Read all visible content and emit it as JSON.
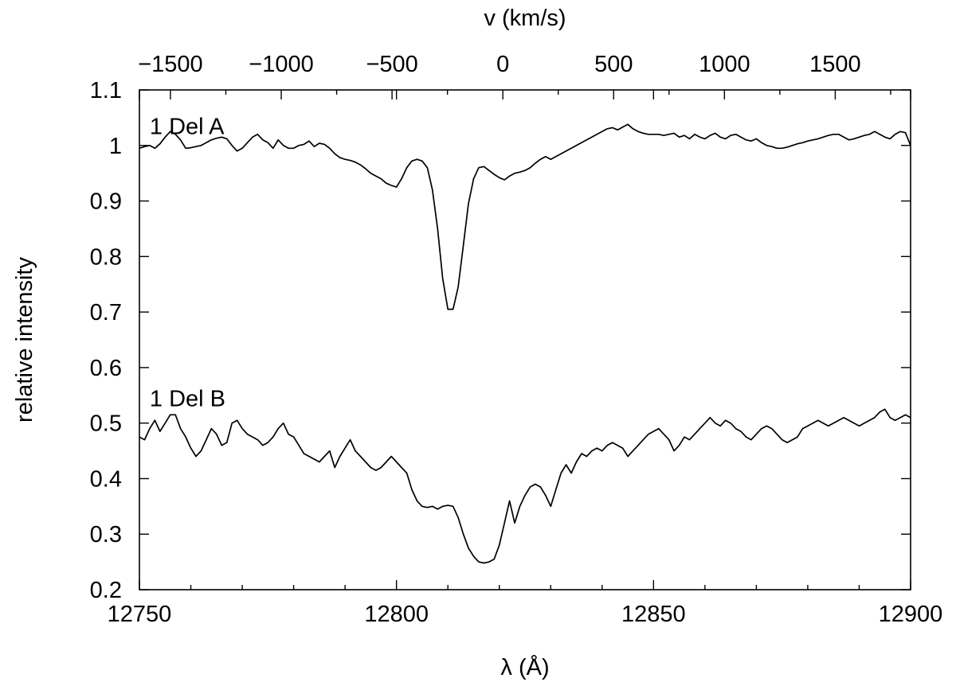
{
  "chart_data": {
    "type": "line",
    "xlabel": "λ (Å)",
    "ylabel": "relative intensity",
    "x2label": "v (km/s)",
    "xlim": [
      12750,
      12900
    ],
    "ylim": [
      0.2,
      1.1
    ],
    "x2lim": [
      -1640,
      1840
    ],
    "x_ticks": [
      12750,
      12800,
      12850,
      12900
    ],
    "x_ticklabels": [
      "12750",
      "12800",
      "12850",
      "12900"
    ],
    "x_minor_ticks": [
      12760,
      12770,
      12780,
      12790,
      12810,
      12820,
      12830,
      12840,
      12860,
      12870,
      12880,
      12890
    ],
    "y_ticks": [
      0.2,
      0.3,
      0.4,
      0.5,
      0.6,
      0.7,
      0.8,
      0.9,
      1.0,
      1.1
    ],
    "y_ticklabels": [
      "0.2",
      "0.3",
      "0.4",
      "0.5",
      "0.6",
      "0.7",
      "0.8",
      "0.9",
      "1",
      "1.1"
    ],
    "x2_ticks": [
      -1500,
      -1000,
      -500,
      0,
      500,
      1000,
      1500
    ],
    "x2_ticklabels": [
      "−1500",
      "−1000",
      "−500",
      "0",
      "500",
      "1000",
      "1500"
    ],
    "x2_minor_ticks": [
      -1250,
      -750,
      -250,
      250,
      750,
      1250,
      1750
    ],
    "grid": false,
    "legend": "none",
    "series": [
      {
        "name": "1 Del A",
        "label": "1 Del A",
        "x": [
          12750,
          12751,
          12752,
          12753,
          12754,
          12755,
          12756,
          12757,
          12758,
          12759,
          12760,
          12761,
          12762,
          12763,
          12764,
          12765,
          12766,
          12767,
          12768,
          12769,
          12770,
          12771,
          12772,
          12773,
          12774,
          12775,
          12776,
          12777,
          12778,
          12779,
          12780,
          12781,
          12782,
          12783,
          12784,
          12785,
          12786,
          12787,
          12788,
          12789,
          12790,
          12791,
          12792,
          12793,
          12794,
          12795,
          12796,
          12797,
          12798,
          12799,
          12800,
          12801,
          12802,
          12803,
          12804,
          12805,
          12806,
          12807,
          12808,
          12809,
          12810,
          12811,
          12812,
          12813,
          12814,
          12815,
          12816,
          12817,
          12818,
          12819,
          12820,
          12821,
          12822,
          12823,
          12824,
          12825,
          12826,
          12827,
          12828,
          12829,
          12830,
          12831,
          12832,
          12833,
          12834,
          12835,
          12836,
          12837,
          12838,
          12839,
          12840,
          12841,
          12842,
          12843,
          12844,
          12845,
          12846,
          12847,
          12848,
          12849,
          12850,
          12851,
          12852,
          12853,
          12854,
          12855,
          12856,
          12857,
          12858,
          12859,
          12860,
          12861,
          12862,
          12863,
          12864,
          12865,
          12866,
          12867,
          12868,
          12869,
          12870,
          12871,
          12872,
          12873,
          12874,
          12875,
          12876,
          12877,
          12878,
          12879,
          12880,
          12881,
          12882,
          12883,
          12884,
          12885,
          12886,
          12887,
          12888,
          12889,
          12890,
          12891,
          12892,
          12893,
          12894,
          12895,
          12896,
          12897,
          12898,
          12899,
          12900
        ],
        "y": [
          0.995,
          0.998,
          1.0,
          0.995,
          1.003,
          1.015,
          1.025,
          1.02,
          1.01,
          0.995,
          0.996,
          0.998,
          1.0,
          1.005,
          1.01,
          1.013,
          1.015,
          1.012,
          1.0,
          0.99,
          0.995,
          1.005,
          1.015,
          1.02,
          1.01,
          1.005,
          0.995,
          1.01,
          1.0,
          0.995,
          0.995,
          1.0,
          1.002,
          1.008,
          0.998,
          1.004,
          1.002,
          0.995,
          0.985,
          0.978,
          0.975,
          0.973,
          0.97,
          0.965,
          0.958,
          0.95,
          0.945,
          0.94,
          0.932,
          0.928,
          0.925,
          0.94,
          0.96,
          0.972,
          0.975,
          0.972,
          0.96,
          0.92,
          0.85,
          0.76,
          0.705,
          0.705,
          0.745,
          0.82,
          0.895,
          0.94,
          0.96,
          0.962,
          0.955,
          0.948,
          0.942,
          0.938,
          0.945,
          0.95,
          0.952,
          0.955,
          0.96,
          0.968,
          0.975,
          0.98,
          0.975,
          0.98,
          0.985,
          0.99,
          0.995,
          1.0,
          1.005,
          1.01,
          1.015,
          1.02,
          1.025,
          1.03,
          1.032,
          1.028,
          1.033,
          1.038,
          1.03,
          1.025,
          1.022,
          1.02,
          1.02,
          1.02,
          1.018,
          1.02,
          1.022,
          1.015,
          1.018,
          1.012,
          1.02,
          1.015,
          1.012,
          1.018,
          1.022,
          1.015,
          1.012,
          1.018,
          1.02,
          1.015,
          1.01,
          1.008,
          1.012,
          1.005,
          1.0,
          0.998,
          0.995,
          0.995,
          0.997,
          1.0,
          1.003,
          1.005,
          1.008,
          1.01,
          1.012,
          1.015,
          1.018,
          1.02,
          1.02,
          1.015,
          1.01,
          1.012,
          1.015,
          1.018,
          1.02,
          1.025,
          1.02,
          1.015,
          1.012,
          1.02,
          1.025,
          1.023,
          1.0
        ]
      },
      {
        "name": "1 Del B",
        "label": "1 Del B",
        "x": [
          12750,
          12751,
          12752,
          12753,
          12754,
          12755,
          12756,
          12757,
          12758,
          12759,
          12760,
          12761,
          12762,
          12763,
          12764,
          12765,
          12766,
          12767,
          12768,
          12769,
          12770,
          12771,
          12772,
          12773,
          12774,
          12775,
          12776,
          12777,
          12778,
          12779,
          12780,
          12781,
          12782,
          12783,
          12784,
          12785,
          12786,
          12787,
          12788,
          12789,
          12790,
          12791,
          12792,
          12793,
          12794,
          12795,
          12796,
          12797,
          12798,
          12799,
          12800,
          12801,
          12802,
          12803,
          12804,
          12805,
          12806,
          12807,
          12808,
          12809,
          12810,
          12811,
          12812,
          12813,
          12814,
          12815,
          12816,
          12817,
          12818,
          12819,
          12820,
          12821,
          12822,
          12823,
          12824,
          12825,
          12826,
          12827,
          12828,
          12829,
          12830,
          12831,
          12832,
          12833,
          12834,
          12835,
          12836,
          12837,
          12838,
          12839,
          12840,
          12841,
          12842,
          12843,
          12844,
          12845,
          12846,
          12847,
          12848,
          12849,
          12850,
          12851,
          12852,
          12853,
          12854,
          12855,
          12856,
          12857,
          12858,
          12859,
          12860,
          12861,
          12862,
          12863,
          12864,
          12865,
          12866,
          12867,
          12868,
          12869,
          12870,
          12871,
          12872,
          12873,
          12874,
          12875,
          12876,
          12877,
          12878,
          12879,
          12880,
          12881,
          12882,
          12883,
          12884,
          12885,
          12886,
          12887,
          12888,
          12889,
          12890,
          12891,
          12892,
          12893,
          12894,
          12895,
          12896,
          12897,
          12898,
          12899,
          12900
        ],
        "y": [
          0.475,
          0.47,
          0.49,
          0.505,
          0.485,
          0.5,
          0.515,
          0.515,
          0.49,
          0.475,
          0.455,
          0.44,
          0.45,
          0.47,
          0.49,
          0.48,
          0.46,
          0.465,
          0.5,
          0.505,
          0.49,
          0.48,
          0.475,
          0.47,
          0.46,
          0.465,
          0.475,
          0.49,
          0.5,
          0.48,
          0.475,
          0.46,
          0.445,
          0.44,
          0.435,
          0.43,
          0.44,
          0.45,
          0.42,
          0.44,
          0.455,
          0.47,
          0.45,
          0.44,
          0.43,
          0.42,
          0.415,
          0.42,
          0.43,
          0.44,
          0.43,
          0.42,
          0.41,
          0.38,
          0.36,
          0.35,
          0.348,
          0.35,
          0.345,
          0.35,
          0.352,
          0.35,
          0.33,
          0.3,
          0.275,
          0.26,
          0.25,
          0.248,
          0.25,
          0.255,
          0.28,
          0.32,
          0.36,
          0.32,
          0.35,
          0.37,
          0.385,
          0.39,
          0.385,
          0.37,
          0.35,
          0.38,
          0.41,
          0.425,
          0.41,
          0.43,
          0.445,
          0.44,
          0.45,
          0.455,
          0.45,
          0.46,
          0.465,
          0.46,
          0.455,
          0.44,
          0.45,
          0.46,
          0.47,
          0.48,
          0.485,
          0.49,
          0.48,
          0.47,
          0.45,
          0.46,
          0.475,
          0.47,
          0.48,
          0.49,
          0.5,
          0.51,
          0.5,
          0.495,
          0.505,
          0.5,
          0.49,
          0.485,
          0.475,
          0.47,
          0.48,
          0.49,
          0.495,
          0.49,
          0.48,
          0.47,
          0.465,
          0.47,
          0.475,
          0.49,
          0.495,
          0.5,
          0.505,
          0.5,
          0.495,
          0.5,
          0.505,
          0.51,
          0.505,
          0.5,
          0.495,
          0.5,
          0.505,
          0.51,
          0.52,
          0.525,
          0.51,
          0.505,
          0.51,
          0.515,
          0.51
        ]
      }
    ]
  }
}
